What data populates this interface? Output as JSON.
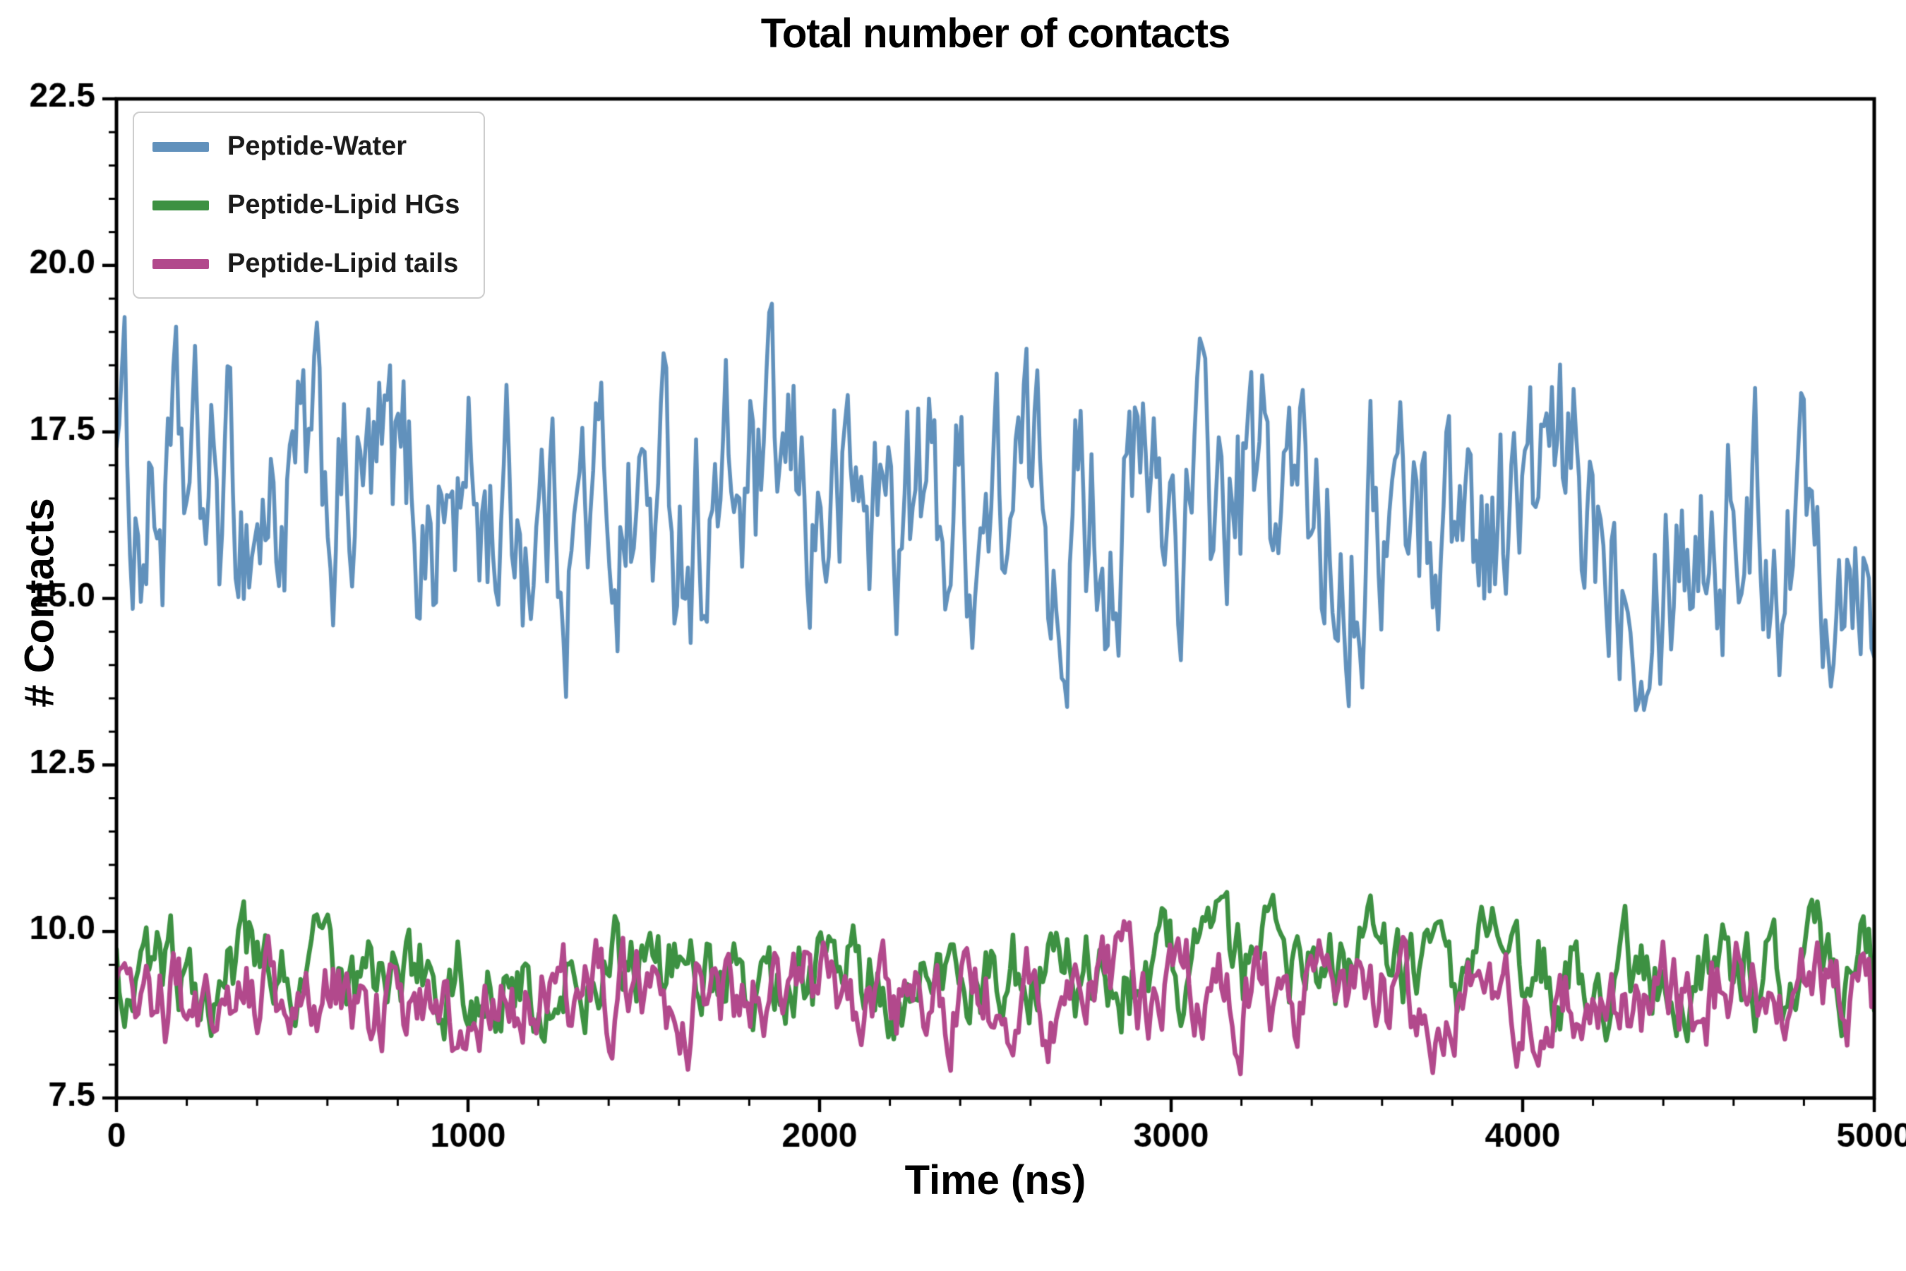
{
  "chart_data": {
    "type": "line",
    "title": "Total number of contacts",
    "xlabel": "Time (ns)",
    "ylabel": "# Contacts",
    "xlim": [
      0,
      5000
    ],
    "ylim": [
      7.5,
      22.5
    ],
    "xticks": [
      0,
      1000,
      2000,
      3000,
      4000,
      5000
    ],
    "yticks": [
      7.5,
      10.0,
      12.5,
      15.0,
      17.5,
      20.0,
      22.5
    ],
    "x_minor_step": 200,
    "y_minor_step": 0.5,
    "grid": false,
    "legend_position": "upper-left",
    "axis_color": "#000000",
    "series": [
      {
        "name": "Peptide-Water",
        "color": "#6191bc",
        "mean": 16.35,
        "min": 13.3,
        "max": 21.0,
        "approx_std": 1.2,
        "start": 19.5,
        "n_points": 650,
        "seed": 1234,
        "amplitude": 1.5,
        "reversion": 0.3,
        "line_width": 5.5
      },
      {
        "name": "Peptide-Lipid HGs",
        "color": "#3d9142",
        "mean": 9.35,
        "min": 7.55,
        "max": 10.6,
        "approx_std": 0.45,
        "start": 9.6,
        "n_points": 650,
        "seed": 777,
        "amplitude": 0.56,
        "reversion": 0.32,
        "line_width": 6.5
      },
      {
        "name": "Peptide-Lipid tails",
        "color": "#b2498c",
        "mean": 9.0,
        "min": 7.4,
        "max": 10.35,
        "approx_std": 0.45,
        "start": 8.9,
        "n_points": 650,
        "seed": 2024,
        "amplitude": 0.56,
        "reversion": 0.32,
        "line_width": 6.5
      }
    ]
  }
}
